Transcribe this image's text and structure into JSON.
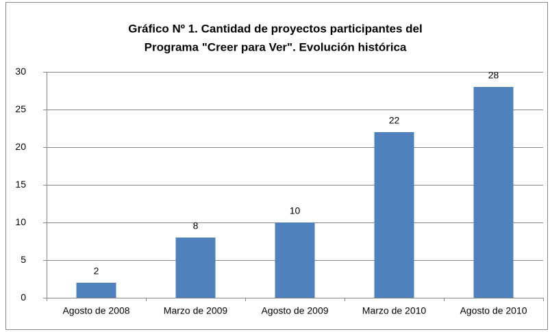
{
  "chart_data": {
    "type": "bar",
    "title": [
      "Gráfico Nº 1. Cantidad de proyectos participantes del",
      "Programa \"Creer para Ver\". Evolución histórica"
    ],
    "categories": [
      "Agosto de 2008",
      "Marzo de 2009",
      "Agosto de 2009",
      "Marzo de 2010",
      "Agosto de 2010"
    ],
    "values": [
      2,
      8,
      10,
      22,
      28
    ],
    "color": "#4f81bd",
    "ylim": [
      0,
      30
    ],
    "yticks": [
      0,
      5,
      10,
      15,
      20,
      25,
      30
    ],
    "grid": true
  }
}
